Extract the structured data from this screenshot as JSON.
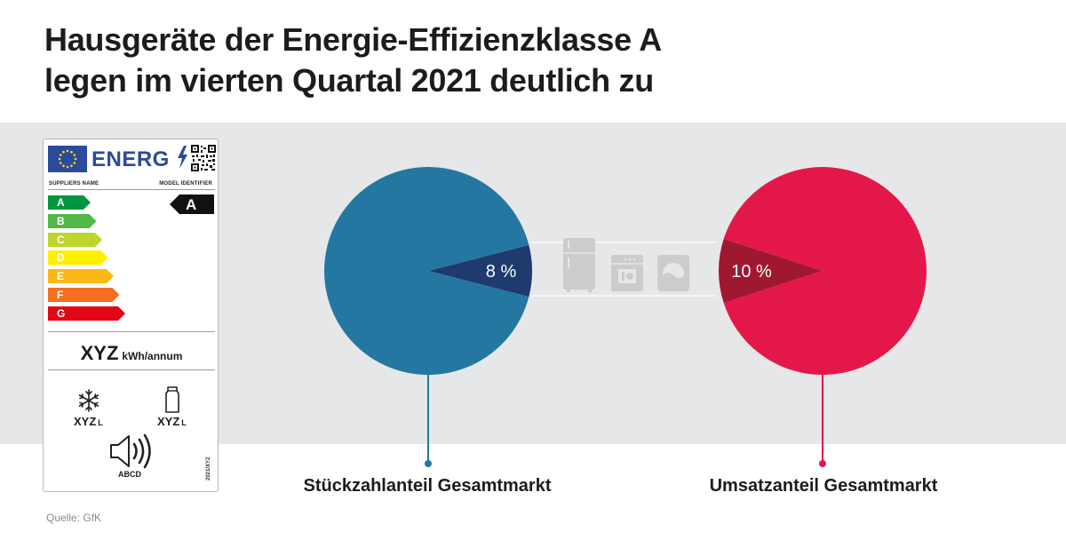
{
  "title": {
    "line1": "Hausgeräte der Energie-Effizienzklasse A",
    "line2": "legen im vierten Quartal 2021 deutlich zu"
  },
  "chart_data": {
    "type": "pie",
    "charts": [
      {
        "caption": "Stückzahlanteil Gesamtmarkt",
        "slices": [
          {
            "label": "8 %",
            "value": 8,
            "color": "#1f3a6e"
          },
          {
            "label": "",
            "value": 92,
            "color": "#2477a0"
          }
        ],
        "accent_color": "#2477a0"
      },
      {
        "caption": "Umsatzanteil Gesamtmarkt",
        "slices": [
          {
            "label": "10 %",
            "value": 10,
            "color": "#a0182f"
          },
          {
            "label": "",
            "value": 90,
            "color": "#e4174b"
          }
        ],
        "accent_color": "#e4174b"
      }
    ]
  },
  "appliance_icons": [
    "fridge-icon",
    "dishwasher-icon",
    "washing-machine-icon"
  ],
  "energy_label": {
    "brand_text": "ENERG",
    "supplier": "SUPPLIERS NAME",
    "model": "MODEL IDENTIFIER",
    "scale": [
      "A",
      "B",
      "C",
      "D",
      "E",
      "F",
      "G"
    ],
    "scale_colors": [
      "#00963f",
      "#51b747",
      "#bdd62e",
      "#fff100",
      "#fcb814",
      "#f36e21",
      "#e30613"
    ],
    "class": "A",
    "consumption_value": "XYZ",
    "consumption_unit": "kWh/annum",
    "freezer_volume": "XYZ",
    "fridge_volume": "XYZ",
    "volume_unit": "L",
    "noise_class": "ABCD",
    "regulation": "2021/XYZ"
  },
  "source": "Quelle: GfK"
}
